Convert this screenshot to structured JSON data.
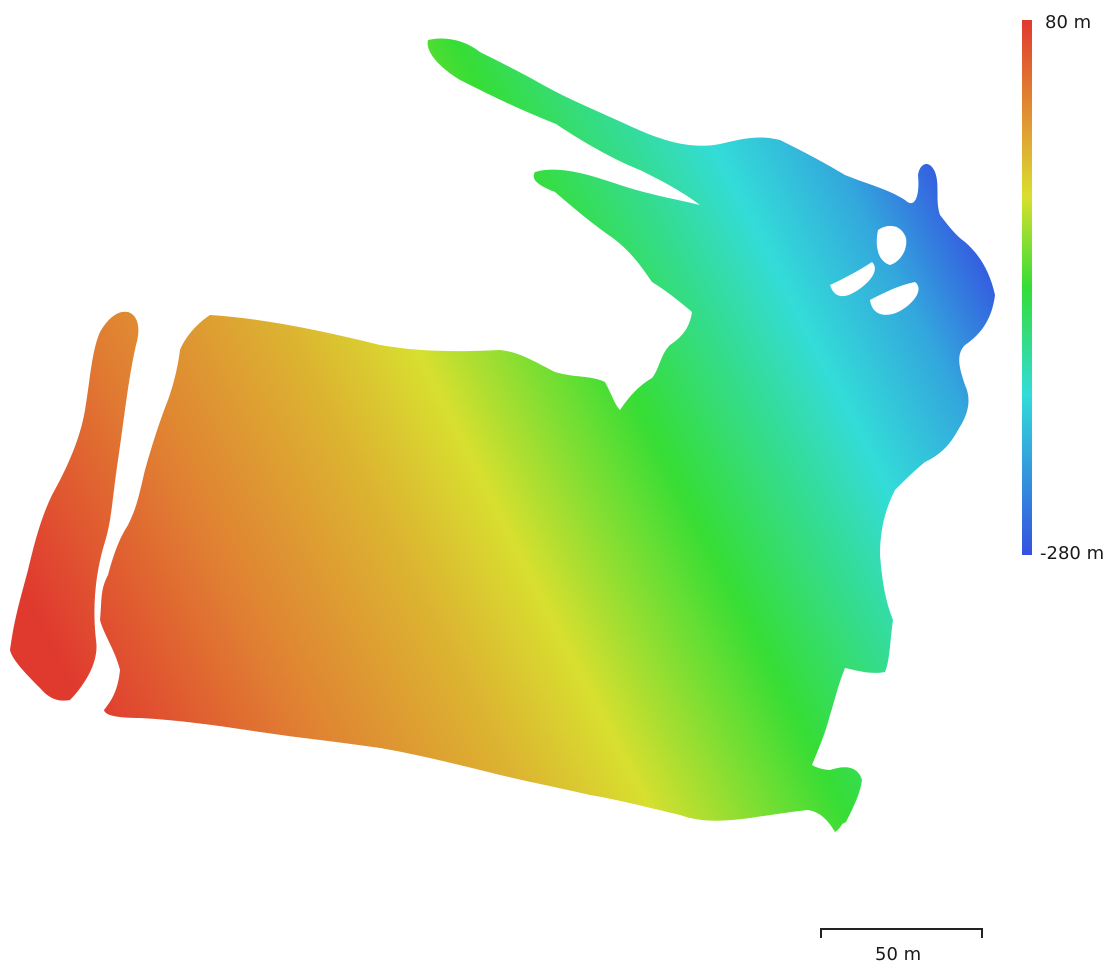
{
  "legend": {
    "max_label": "80 m",
    "min_label": "-280 m",
    "colors": {
      "high": "#e03a2f",
      "upper": "#e0a634",
      "mid_high": "#d9df2e",
      "mid": "#34dd36",
      "mid_low": "#32dcd9",
      "low": "#3550e0"
    }
  },
  "scale_bar": {
    "label": "50 m"
  }
}
